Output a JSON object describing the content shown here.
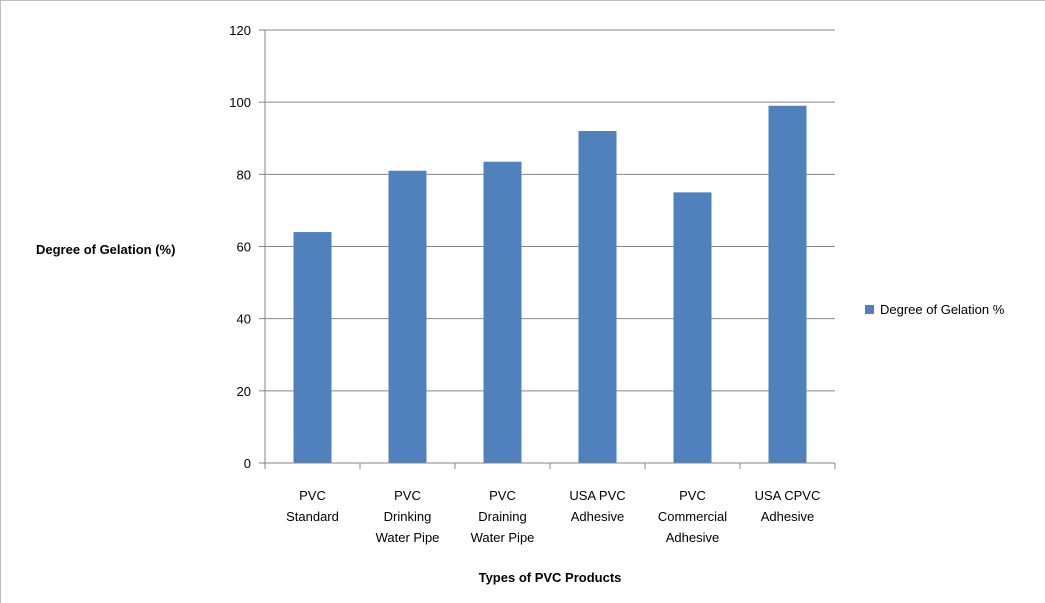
{
  "chart_data": {
    "type": "bar",
    "categories": [
      [
        "PVC",
        "Standard"
      ],
      [
        "PVC",
        "Drinking",
        "Water Pipe"
      ],
      [
        "PVC",
        "Draining",
        "Water Pipe"
      ],
      [
        "USA PVC",
        "Adhesive"
      ],
      [
        "PVC",
        "Commercial",
        "Adhesive"
      ],
      [
        "USA CPVC",
        "Adhesive"
      ]
    ],
    "series": [
      {
        "name": "Degree of Gelation %",
        "values": [
          64,
          81,
          83.5,
          92,
          75,
          99
        ],
        "color": "#4f81bd"
      }
    ],
    "title": "",
    "xlabel": "Types of PVC Products",
    "ylabel": "Degree of Gelation (%)",
    "ylim": [
      0,
      120
    ],
    "yticks": [
      0,
      20,
      40,
      60,
      80,
      100,
      120
    ],
    "grid": true,
    "legend_position": "right"
  }
}
